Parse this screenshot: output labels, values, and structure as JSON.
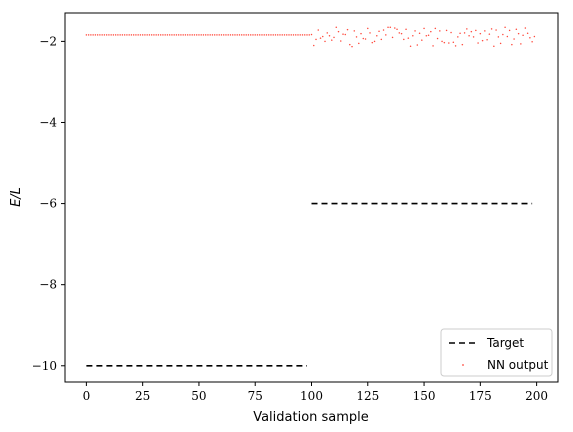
{
  "chart_data": {
    "type": "line",
    "xlabel": "Validation sample",
    "ylabel": "E/L",
    "xlim": [
      -9.5,
      209.5
    ],
    "ylim": [
      -10.4,
      -1.3
    ],
    "xticks": [
      0,
      25,
      50,
      75,
      100,
      125,
      150,
      175,
      200
    ],
    "yticks": [
      -10,
      -8,
      -6,
      -4,
      -2
    ],
    "xtick_labels": [
      "0",
      "25",
      "50",
      "75",
      "100",
      "125",
      "150",
      "175",
      "200"
    ],
    "ytick_labels": [
      "−10",
      "−8",
      "−6",
      "−4",
      "−2"
    ],
    "grid": false,
    "legend_position": "lower-right",
    "series": [
      {
        "name": "Target",
        "style": "dashed-line",
        "color": "#000000",
        "segments": [
          {
            "x": [
              0,
              98
            ],
            "y": [
              -10.0,
              -10.0
            ]
          },
          {
            "x": [
              100,
              198
            ],
            "y": [
              -6.0,
              -6.0
            ]
          }
        ]
      },
      {
        "name": "NN output",
        "style": "markers",
        "color": "#ff4a3d",
        "points": {
          "x_start": 0,
          "y_first_half": -1.84,
          "x_second_half_start": 100,
          "y_second_half": [
            -1.83,
            -2.1,
            -1.95,
            -1.72,
            -1.92,
            -1.88,
            -2.0,
            -1.79,
            -1.86,
            -1.97,
            -1.9,
            -1.65,
            -1.76,
            -1.99,
            -1.82,
            -1.83,
            -1.71,
            -2.08,
            -2.13,
            -1.74,
            -1.89,
            -2.05,
            -1.81,
            -1.93,
            -1.94,
            -1.68,
            -1.79,
            -2.03,
            -2.0,
            -1.86,
            -1.75,
            -1.95,
            -1.72,
            -1.84,
            -1.65,
            -1.65,
            -1.9,
            -1.67,
            -1.7,
            -1.79,
            -1.81,
            -1.95,
            -1.7,
            -1.92,
            -2.12,
            -1.86,
            -1.74,
            -2.09,
            -1.8,
            -1.97,
            -1.68,
            -1.86,
            -1.85,
            -1.76,
            -2.11,
            -1.68,
            -1.93,
            -1.74,
            -2.0,
            -2.03,
            -1.73,
            -2.04,
            -1.78,
            -2.02,
            -2.11,
            -1.89,
            -1.8,
            -2.08,
            -1.79,
            -1.69,
            -1.86,
            -1.76,
            -1.89,
            -1.73,
            -2.04,
            -1.81,
            -1.98,
            -1.74,
            -1.96,
            -1.82,
            -1.69,
            -2.12,
            -1.72,
            -1.89,
            -2.05,
            -1.83,
            -1.65,
            -1.88,
            -1.73,
            -2.08,
            -1.94,
            -1.7,
            -1.81,
            -2.06,
            -1.85,
            -1.67,
            -1.8,
            -1.91,
            -2.01,
            -1.88
          ]
        }
      }
    ]
  }
}
